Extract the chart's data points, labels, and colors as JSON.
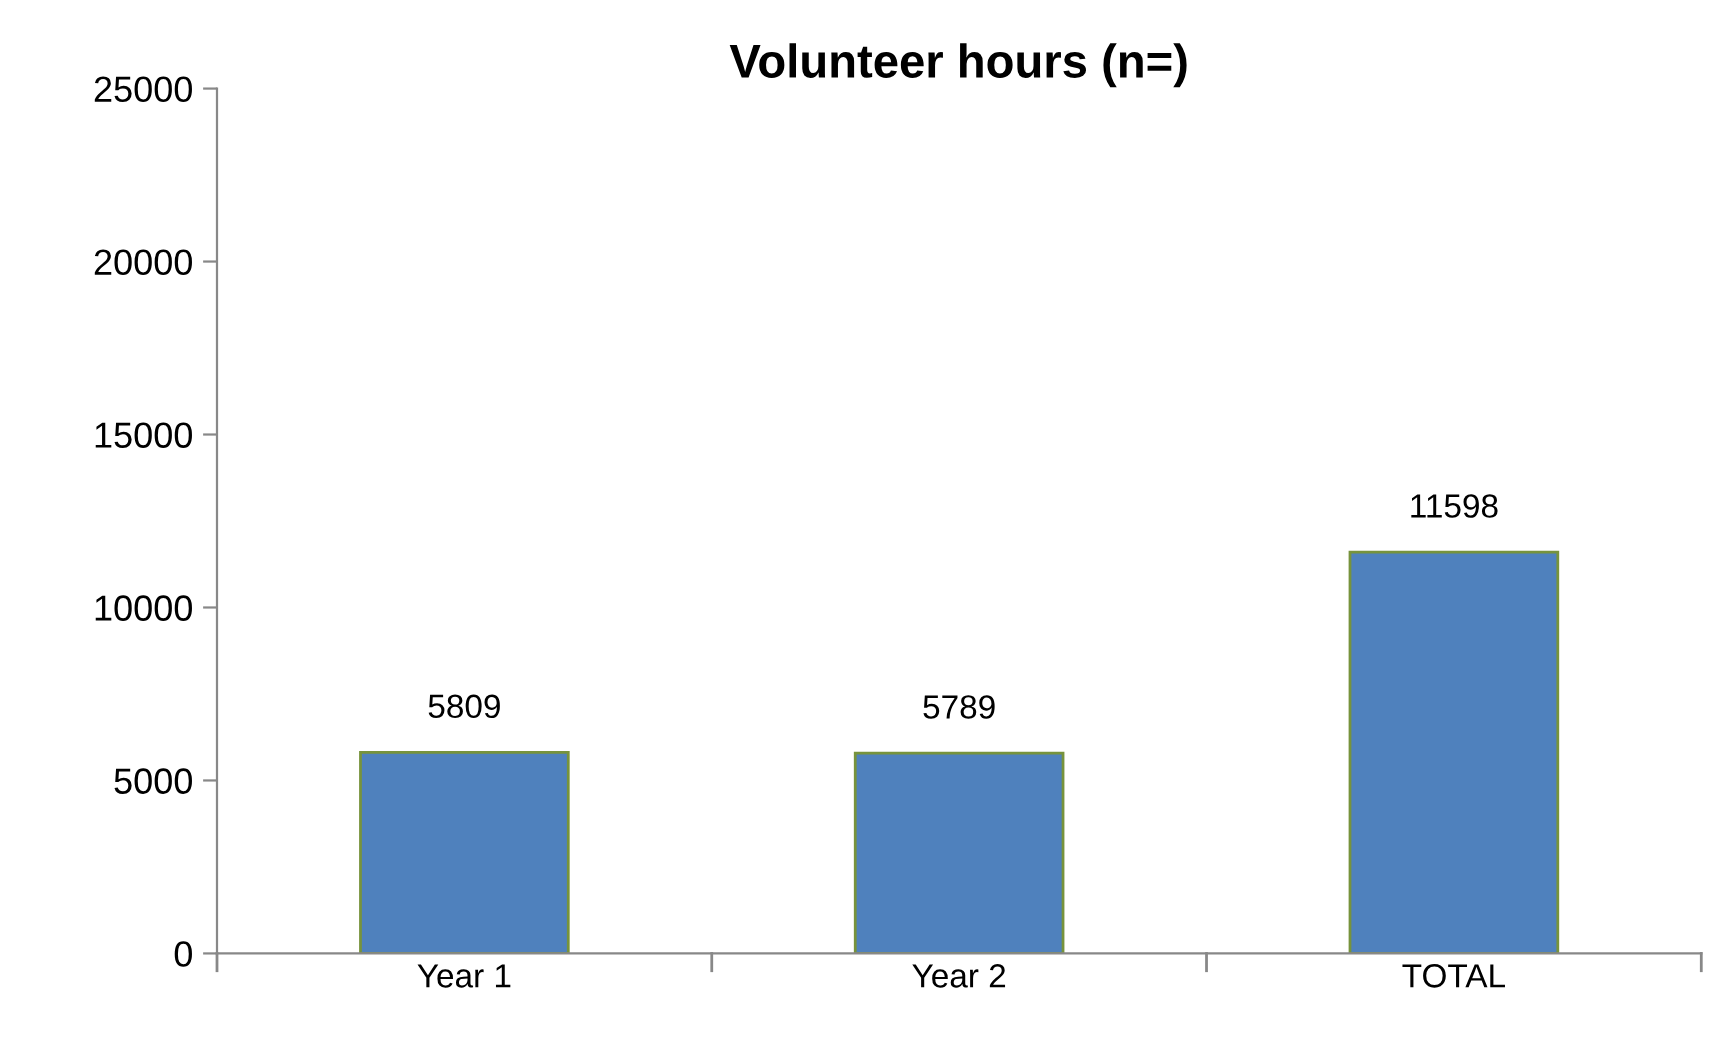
{
  "chart_data": {
    "type": "bar",
    "title": "Volunteer hours (n=)",
    "categories": [
      "Year 1",
      "Year 2",
      "TOTAL"
    ],
    "values": [
      5809,
      5789,
      11598
    ],
    "color": "#4f81bd",
    "ylim": [
      0,
      25000
    ],
    "yticks": [
      0,
      5000,
      10000,
      15000,
      20000,
      25000
    ],
    "data_labels": true,
    "grid": false,
    "legend": false
  }
}
